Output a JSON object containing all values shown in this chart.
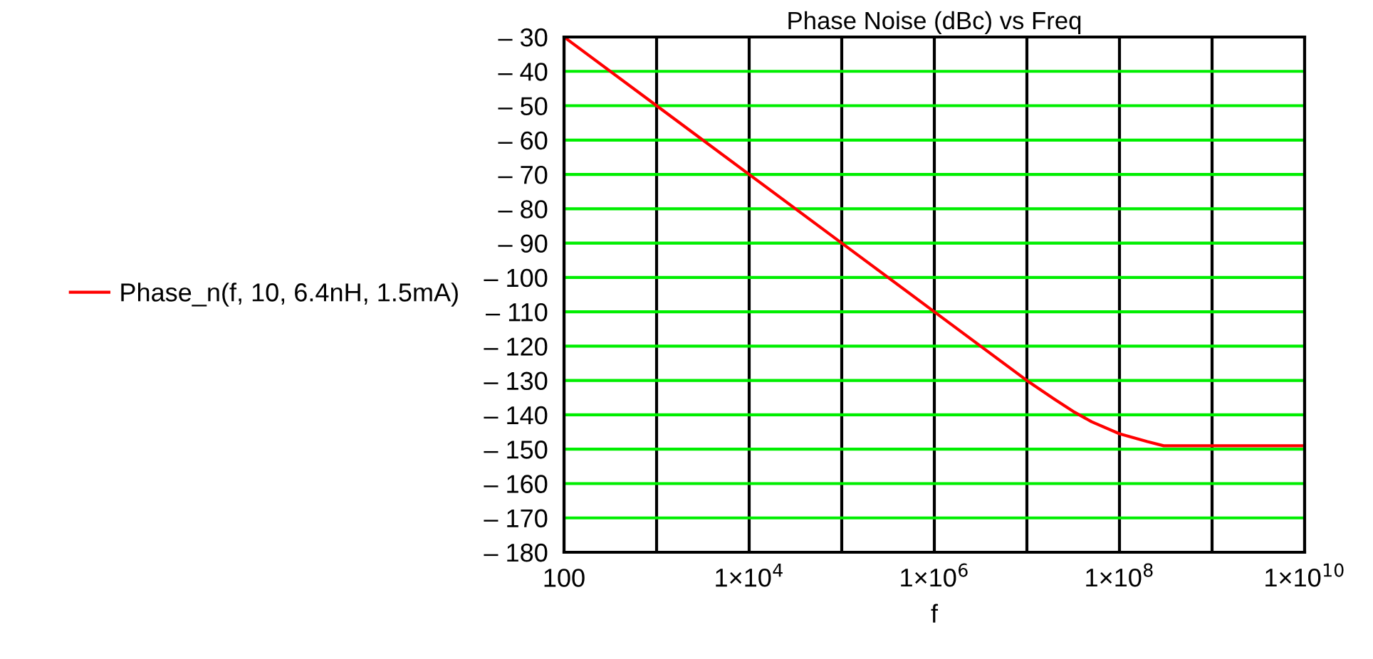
{
  "chart_data": {
    "type": "line",
    "title": "Phase Noise (dBc) vs Freq",
    "xlabel": "f",
    "log": "x",
    "grid": true,
    "legend": "left",
    "marker": "none",
    "line_style": "solid",
    "xlim": [
      100,
      10000000000
    ],
    "ylim": [
      -180,
      -30
    ],
    "xticks": [
      100,
      {
        "value": 1000,
        "label": null
      },
      {
        "value": 10000,
        "label": "1×10$^{4}$"
      },
      {
        "value": 100000,
        "label": null
      },
      {
        "value": 1000000,
        "label": "1×10$^{6}$"
      },
      {
        "value": 10000000,
        "label": null
      },
      {
        "value": 100000000,
        "label": "1×10$^{8}$"
      },
      {
        "value": 1000000000,
        "label": null
      },
      {
        "value": 10000000000,
        "label": "1×10$^{10}$"
      }
    ],
    "yticks": [
      {
        "value": -30,
        "label": "– 30"
      },
      {
        "value": -40,
        "label": "– 40"
      },
      {
        "value": -50,
        "label": "– 50"
      },
      {
        "value": -60,
        "label": "– 60"
      },
      {
        "value": -70,
        "label": "– 70"
      },
      {
        "value": -80,
        "label": "– 80"
      },
      {
        "value": -90,
        "label": "– 90"
      },
      {
        "value": -100,
        "label": "– 100"
      },
      {
        "value": -110,
        "label": "– 110"
      },
      {
        "value": -120,
        "label": "– 120"
      },
      {
        "value": -130,
        "label": "– 130"
      },
      {
        "value": -140,
        "label": "– 140"
      },
      {
        "value": -150,
        "label": "– 150"
      },
      {
        "value": -160,
        "label": "– 160"
      },
      {
        "value": -170,
        "label": "– 170"
      },
      {
        "value": -180,
        "label": "– 180"
      }
    ],
    "series": [
      {
        "name": "Phase_n(f, 10, 6.4nH, 1.5mA)",
        "color": "#ff0000",
        "x": [
          100,
          1000,
          10000,
          100000,
          1000000,
          10000000,
          20000000,
          31600000,
          50000000,
          100000000,
          200000000,
          300000000,
          10000000000
        ],
        "values": [
          -30,
          -50,
          -70,
          -90,
          -110,
          -130,
          -135.5,
          -139,
          -142,
          -145.5,
          -147.8,
          -149,
          -149
        ]
      }
    ]
  }
}
